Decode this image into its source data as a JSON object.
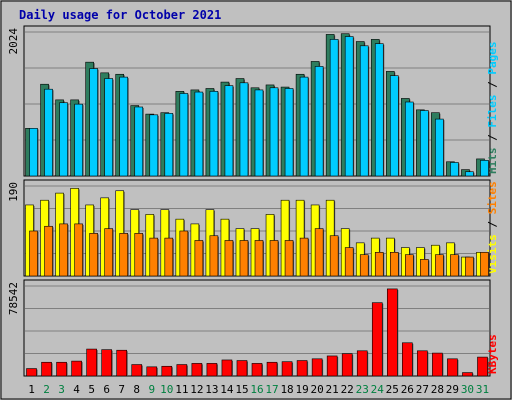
{
  "colors": {
    "background": "#c0c0c0",
    "title": "#0000aa",
    "grid": "#808080",
    "hits": "#2e7d5e",
    "files": "#00ccff",
    "pages": "#00ccff",
    "visits": "#ffff00",
    "sites": "#ff8000",
    "kbytes": "#ff0000",
    "day_normal": "#000000",
    "day_weekend": "#008040"
  },
  "chart_data": {
    "type": "bar",
    "title": "Daily usage for October 2021",
    "categories": [
      "1",
      "2",
      "3",
      "4",
      "5",
      "6",
      "7",
      "8",
      "9",
      "10",
      "11",
      "12",
      "13",
      "14",
      "15",
      "16",
      "17",
      "18",
      "19",
      "20",
      "21",
      "22",
      "23",
      "24",
      "25",
      "26",
      "27",
      "28",
      "29",
      "30",
      "31"
    ],
    "weekend_days": [
      "2",
      "3",
      "9",
      "10",
      "16",
      "17",
      "23",
      "24",
      "30",
      "31"
    ],
    "panels": [
      {
        "id": "top",
        "max_label": "2024",
        "ymax": 2024,
        "legend": [
          {
            "text": "Hits",
            "color": "#2e7d5e"
          },
          {
            "text": " / ",
            "color": "#000000"
          },
          {
            "text": "Files",
            "color": "#00ccff"
          },
          {
            "text": " / ",
            "color": "#000000"
          },
          {
            "text": "Pages",
            "color": "#00ccff"
          }
        ],
        "series": [
          {
            "name": "Hits",
            "color": "#2e7d5e",
            "values": [
              670,
              1290,
              1070,
              1070,
              1600,
              1450,
              1430,
              990,
              870,
              890,
              1190,
              1210,
              1230,
              1320,
              1370,
              1240,
              1280,
              1250,
              1430,
              1610,
              1990,
              2000,
              1890,
              1920,
              1470,
              1090,
              930,
              890,
              200,
              90,
              240
            ]
          },
          {
            "name": "Files",
            "color": "#00ccff",
            "values": [
              670,
              1220,
              1030,
              1010,
              1510,
              1370,
              1390,
              970,
              860,
              880,
              1160,
              1180,
              1190,
              1270,
              1310,
              1210,
              1240,
              1230,
              1390,
              1540,
              1920,
              1960,
              1830,
              1860,
              1410,
              1040,
              920,
              800,
              190,
              60,
              220
            ]
          }
        ]
      },
      {
        "id": "middle",
        "max_label": "190",
        "ymax": 190,
        "legend": [
          {
            "text": "Visits",
            "color": "#ffff00"
          },
          {
            "text": " / ",
            "color": "#000000"
          },
          {
            "text": "Sites",
            "color": "#ff8000"
          }
        ],
        "series": [
          {
            "name": "Visits",
            "color": "#ffff00",
            "values": [
              150,
              160,
              175,
              185,
              150,
              165,
              180,
              140,
              130,
              140,
              120,
              110,
              140,
              120,
              100,
              100,
              130,
              160,
              160,
              150,
              160,
              100,
              70,
              80,
              80,
              60,
              60,
              65,
              70,
              40,
              50
            ]
          },
          {
            "name": "Sites",
            "color": "#ff8000",
            "values": [
              95,
              105,
              110,
              110,
              90,
              100,
              90,
              90,
              80,
              80,
              95,
              75,
              85,
              75,
              75,
              75,
              75,
              75,
              80,
              100,
              85,
              60,
              45,
              50,
              50,
              45,
              35,
              45,
              45,
              40,
              50
            ]
          }
        ]
      },
      {
        "id": "bottom",
        "max_label": "78542",
        "ymax": 78542,
        "legend": [
          {
            "text": "KBytes",
            "color": "#ff0000"
          }
        ],
        "series": [
          {
            "name": "KBytes",
            "color": "#ff0000",
            "values": [
              6500,
              12000,
              12000,
              13000,
              23500,
              23000,
              22500,
              10000,
              8000,
              8500,
              10000,
              11000,
              11000,
              14000,
              13500,
              11000,
              12000,
              12500,
              13500,
              15000,
              17500,
              19500,
              22000,
              64000,
              76000,
              29000,
              22000,
              20000,
              15000,
              3000,
              16500
            ]
          }
        ]
      }
    ]
  }
}
